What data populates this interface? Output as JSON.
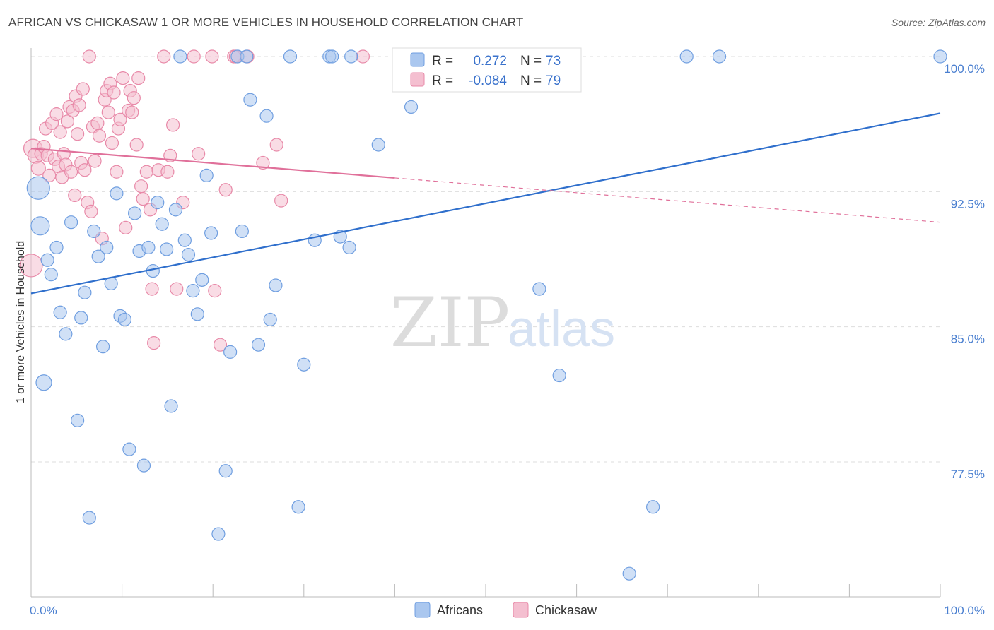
{
  "header": {
    "title": "AFRICAN VS CHICKASAW 1 OR MORE VEHICLES IN HOUSEHOLD CORRELATION CHART",
    "source": "Source: ZipAtlas.com"
  },
  "watermark": {
    "zip": "ZIP",
    "atlas": "atlas"
  },
  "colors": {
    "africans": "#6f9ee0",
    "africans_fill": "#aac7ef",
    "africans_line": "#2f6fcc",
    "chickasaw": "#e889a8",
    "chickasaw_fill": "#f4bfd0",
    "chickasaw_line": "#e0709a",
    "tick_text": "#4a7fd0",
    "grid": "#dddddd"
  },
  "legend": {
    "rows": [
      {
        "r_label": "R =",
        "r_value": "0.272",
        "n_label": "N =",
        "n_value": "73"
      },
      {
        "r_label": "R =",
        "r_value": "-0.084",
        "n_label": "N =",
        "n_value": "79"
      }
    ]
  },
  "bottom_legend": {
    "items": [
      "Africans",
      "Chickasaw"
    ]
  },
  "chart_data": {
    "type": "scatter",
    "title": "AFRICAN VS CHICKASAW 1 OR MORE VEHICLES IN HOUSEHOLD CORRELATION CHART",
    "xlabel": "",
    "ylabel": "1 or more Vehicles in Household",
    "xlim": [
      0,
      100
    ],
    "ylim": [
      71.0,
      100.8
    ],
    "x_ticks": [
      0,
      100
    ],
    "x_tick_labels": [
      "0.0%",
      "100.0%"
    ],
    "y_ticks": [
      77.5,
      85.0,
      92.5,
      100.0
    ],
    "y_tick_labels": [
      "77.5%",
      "85.0%",
      "92.5%",
      "100.0%"
    ],
    "grid": true,
    "legend_position": "top-center",
    "series": [
      {
        "name": "Africans",
        "r": 0.272,
        "n": 73,
        "trend": {
          "x": [
            0,
            100
          ],
          "y": [
            86.85,
            96.85
          ],
          "dashed_from": null
        },
        "points": [
          [
            0.8,
            92.7,
            16
          ],
          [
            1.0,
            90.6,
            13
          ],
          [
            1.4,
            81.9,
            11
          ],
          [
            1.8,
            88.7,
            9
          ],
          [
            2.2,
            87.9,
            9
          ],
          [
            2.8,
            89.4,
            9
          ],
          [
            3.2,
            85.8,
            9
          ],
          [
            3.8,
            84.6,
            9
          ],
          [
            4.4,
            90.8,
            9
          ],
          [
            5.1,
            79.8,
            9
          ],
          [
            5.5,
            85.5,
            9
          ],
          [
            5.9,
            86.9,
            9
          ],
          [
            6.4,
            74.4,
            9
          ],
          [
            6.9,
            90.3,
            9
          ],
          [
            7.4,
            88.9,
            9
          ],
          [
            7.9,
            83.9,
            9
          ],
          [
            8.3,
            89.4,
            9
          ],
          [
            8.8,
            87.4,
            9
          ],
          [
            9.4,
            92.4,
            9
          ],
          [
            9.8,
            85.6,
            9
          ],
          [
            10.3,
            85.4,
            9
          ],
          [
            10.8,
            78.2,
            9
          ],
          [
            11.4,
            91.3,
            9
          ],
          [
            11.9,
            89.2,
            9
          ],
          [
            12.4,
            77.3,
            9
          ],
          [
            12.9,
            89.4,
            9
          ],
          [
            13.4,
            88.1,
            9
          ],
          [
            13.9,
            91.9,
            9
          ],
          [
            14.4,
            90.7,
            9
          ],
          [
            14.9,
            89.3,
            9
          ],
          [
            15.4,
            80.6,
            9
          ],
          [
            15.9,
            91.5,
            9
          ],
          [
            16.4,
            100.0,
            9
          ],
          [
            16.9,
            89.8,
            9
          ],
          [
            17.3,
            89.0,
            9
          ],
          [
            17.8,
            87.0,
            9
          ],
          [
            18.3,
            85.7,
            9
          ],
          [
            18.8,
            87.6,
            9
          ],
          [
            19.3,
            93.4,
            9
          ],
          [
            19.8,
            90.2,
            9
          ],
          [
            20.6,
            73.5,
            9
          ],
          [
            21.4,
            77.0,
            9
          ],
          [
            21.9,
            83.6,
            9
          ],
          [
            22.7,
            100.0,
            9
          ],
          [
            23.2,
            90.3,
            9
          ],
          [
            23.7,
            100.0,
            9
          ],
          [
            24.1,
            97.6,
            9
          ],
          [
            25.0,
            84.0,
            9
          ],
          [
            25.9,
            96.7,
            9
          ],
          [
            26.3,
            85.4,
            9
          ],
          [
            26.9,
            87.3,
            9
          ],
          [
            28.5,
            100.0,
            9
          ],
          [
            29.4,
            75.0,
            9
          ],
          [
            30.0,
            82.9,
            9
          ],
          [
            31.2,
            89.8,
            9
          ],
          [
            32.8,
            100.0,
            9
          ],
          [
            33.1,
            100.0,
            9
          ],
          [
            34.0,
            90.0,
            9
          ],
          [
            35.0,
            89.4,
            9
          ],
          [
            35.2,
            100.0,
            9
          ],
          [
            38.2,
            95.1,
            9
          ],
          [
            41.8,
            97.2,
            9
          ],
          [
            42.5,
            100.0,
            9
          ],
          [
            44.3,
            100.0,
            9
          ],
          [
            49.2,
            100.0,
            9
          ],
          [
            55.0,
            100.0,
            9
          ],
          [
            55.8,
            100.0,
            9
          ],
          [
            55.9,
            87.1,
            9
          ],
          [
            58.1,
            82.3,
            9
          ],
          [
            65.8,
            71.3,
            9
          ],
          [
            68.4,
            75.0,
            9
          ],
          [
            72.1,
            100.0,
            9
          ],
          [
            75.7,
            100.0,
            9
          ],
          [
            100.0,
            100.0,
            9
          ]
        ]
      },
      {
        "name": "Chickasaw",
        "r": -0.084,
        "n": 79,
        "trend": {
          "x": [
            0,
            100
          ],
          "y": [
            94.9,
            90.8
          ],
          "dashed_from": 40
        },
        "points": [
          [
            0.0,
            88.4,
            16
          ],
          [
            0.2,
            94.9,
            13
          ],
          [
            0.5,
            94.5,
            11
          ],
          [
            0.8,
            93.8,
            10
          ],
          [
            1.1,
            94.6,
            9
          ],
          [
            1.4,
            95.0,
            9
          ],
          [
            1.6,
            96.0,
            9
          ],
          [
            1.8,
            94.5,
            9
          ],
          [
            2.0,
            93.4,
            9
          ],
          [
            2.3,
            96.3,
            9
          ],
          [
            2.6,
            94.3,
            9
          ],
          [
            2.8,
            96.8,
            9
          ],
          [
            3.0,
            93.9,
            9
          ],
          [
            3.2,
            95.8,
            9
          ],
          [
            3.4,
            93.3,
            9
          ],
          [
            3.6,
            94.6,
            9
          ],
          [
            3.8,
            94.0,
            9
          ],
          [
            4.0,
            96.4,
            9
          ],
          [
            4.2,
            97.2,
            9
          ],
          [
            4.4,
            93.6,
            9
          ],
          [
            4.6,
            97.0,
            9
          ],
          [
            4.8,
            92.3,
            9
          ],
          [
            4.9,
            97.8,
            9
          ],
          [
            5.1,
            95.7,
            9
          ],
          [
            5.3,
            97.3,
            9
          ],
          [
            5.5,
            94.1,
            9
          ],
          [
            5.7,
            98.2,
            9
          ],
          [
            5.9,
            93.7,
            9
          ],
          [
            6.2,
            91.9,
            9
          ],
          [
            6.4,
            100.0,
            9
          ],
          [
            6.6,
            91.4,
            9
          ],
          [
            6.8,
            96.1,
            9
          ],
          [
            7.0,
            94.2,
            9
          ],
          [
            7.3,
            96.3,
            9
          ],
          [
            7.5,
            95.6,
            9
          ],
          [
            7.8,
            89.9,
            9
          ],
          [
            8.1,
            97.6,
            9
          ],
          [
            8.3,
            98.1,
            9
          ],
          [
            8.5,
            96.9,
            9
          ],
          [
            8.7,
            98.5,
            9
          ],
          [
            8.9,
            95.2,
            9
          ],
          [
            9.1,
            98.0,
            9
          ],
          [
            9.4,
            93.6,
            9
          ],
          [
            9.6,
            96.0,
            9
          ],
          [
            9.8,
            96.5,
            9
          ],
          [
            10.1,
            98.8,
            9
          ],
          [
            10.4,
            90.5,
            9
          ],
          [
            10.7,
            97.0,
            9
          ],
          [
            10.9,
            98.1,
            9
          ],
          [
            11.1,
            96.9,
            9
          ],
          [
            11.3,
            97.7,
            9
          ],
          [
            11.6,
            95.1,
            9
          ],
          [
            11.8,
            98.8,
            9
          ],
          [
            12.1,
            92.8,
            9
          ],
          [
            12.3,
            92.1,
            9
          ],
          [
            12.7,
            93.6,
            9
          ],
          [
            13.1,
            91.5,
            9
          ],
          [
            13.3,
            87.1,
            9
          ],
          [
            13.5,
            84.1,
            9
          ],
          [
            14.0,
            93.7,
            9
          ],
          [
            14.6,
            100.0,
            9
          ],
          [
            15.0,
            93.6,
            9
          ],
          [
            15.3,
            94.5,
            9
          ],
          [
            15.6,
            96.2,
            9
          ],
          [
            16.0,
            87.1,
            9
          ],
          [
            16.7,
            91.9,
            9
          ],
          [
            17.9,
            100.0,
            9
          ],
          [
            18.4,
            94.6,
            9
          ],
          [
            19.9,
            100.0,
            9
          ],
          [
            20.2,
            87.0,
            9
          ],
          [
            20.8,
            84.0,
            9
          ],
          [
            21.4,
            92.6,
            9
          ],
          [
            22.3,
            100.0,
            9
          ],
          [
            22.5,
            100.0,
            9
          ],
          [
            23.8,
            100.0,
            9
          ],
          [
            25.5,
            94.1,
            9
          ],
          [
            27.0,
            95.1,
            9
          ],
          [
            27.5,
            92.0,
            9
          ],
          [
            36.5,
            100.0,
            9
          ]
        ]
      }
    ]
  }
}
